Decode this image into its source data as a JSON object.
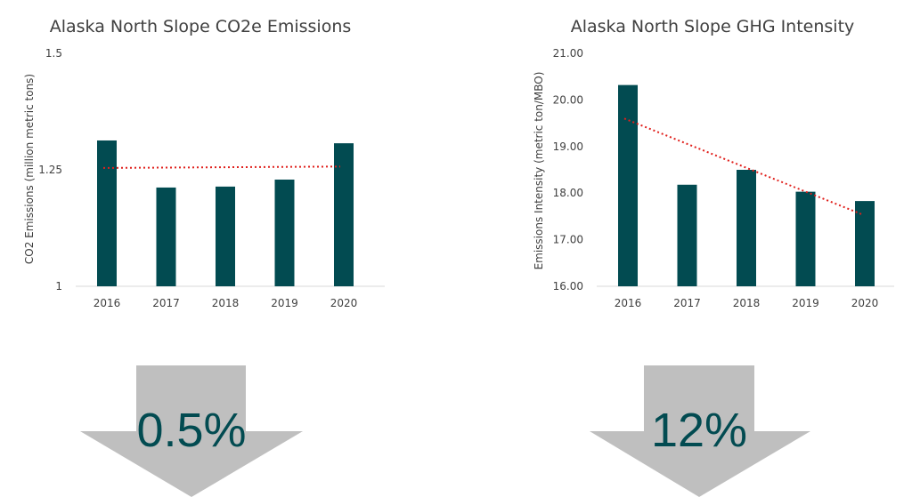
{
  "colors": {
    "bar": "#024B51",
    "trend": "#E0201C",
    "axis": "#D9D9D9",
    "arrow": "#BFBFBF",
    "text": "#404040"
  },
  "chart_data": [
    {
      "type": "bar",
      "title": "Alaska North Slope CO2e Emissions",
      "ylabel": "CO2 Emissions (million metric tons)",
      "xlabel": "",
      "categories": [
        "2016",
        "2017",
        "2018",
        "2019",
        "2020"
      ],
      "values": [
        1.313,
        1.212,
        1.214,
        1.229,
        1.307
      ],
      "ylim": [
        1,
        1.5
      ],
      "yticks": [
        "1",
        "1.25",
        "1.5"
      ],
      "trendline": {
        "type": "linear",
        "start": 1.254,
        "end": 1.257
      },
      "grid": false
    },
    {
      "type": "bar",
      "title": "Alaska North Slope GHG Intensity",
      "ylabel": "Emissions Intensity (metric ton/MBO)",
      "xlabel": "",
      "categories": [
        "2016",
        "2017",
        "2018",
        "2019",
        "2020"
      ],
      "values": [
        20.32,
        18.18,
        18.5,
        18.03,
        17.83
      ],
      "ylim": [
        16,
        21
      ],
      "yticks": [
        "16.00",
        "17.00",
        "18.00",
        "19.00",
        "20.00",
        "21.00"
      ],
      "trendline": {
        "type": "linear",
        "start": 19.6,
        "end": 17.55
      },
      "grid": false
    }
  ],
  "callouts": [
    {
      "value": "0.5%",
      "icon": "down-arrow-icon"
    },
    {
      "value": "12%",
      "icon": "down-arrow-icon"
    }
  ]
}
